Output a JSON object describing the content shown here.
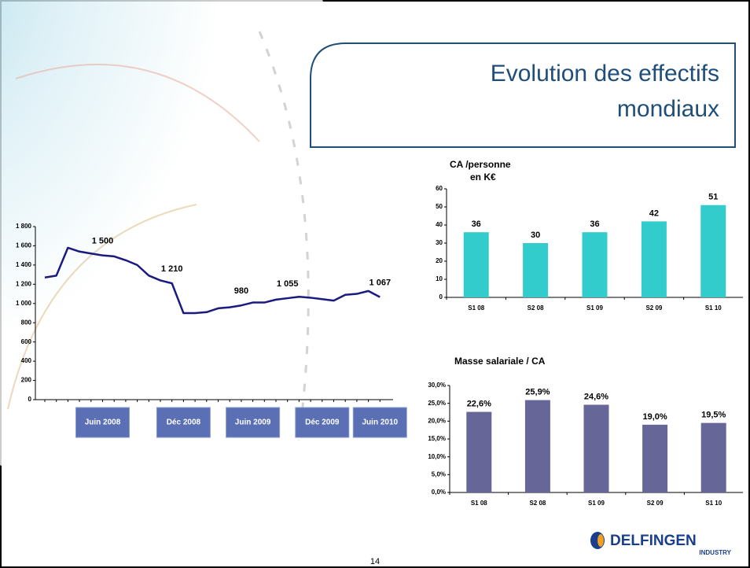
{
  "slide": {
    "title_lines": [
      "Evolution des effectifs",
      "mondiaux"
    ],
    "page_number": "14",
    "logo": "DELFINGEN",
    "logo_sub": "INDUSTRY"
  },
  "chart_data": [
    {
      "type": "line",
      "color": "#1a1a80",
      "categories": [
        null,
        null,
        null,
        null,
        null,
        "Juin 2008",
        null,
        null,
        null,
        null,
        null,
        null,
        "Déc 2008",
        null,
        null,
        null,
        null,
        null,
        "Juin 2009",
        null,
        null,
        null,
        null,
        null,
        "Déc 2009",
        null,
        null,
        null,
        null,
        "Juin 2010"
      ],
      "values": [
        1270,
        1290,
        1580,
        1540,
        1520,
        1500,
        1490,
        1450,
        1400,
        1290,
        1240,
        1210,
        900,
        900,
        910,
        950,
        960,
        980,
        1010,
        1010,
        1040,
        1055,
        1070,
        1060,
        1045,
        1030,
        1090,
        1100,
        1130,
        1067
      ],
      "value_labels": [
        null,
        null,
        null,
        null,
        null,
        "1 500",
        null,
        null,
        null,
        null,
        null,
        "1 210",
        null,
        null,
        null,
        null,
        null,
        "980",
        null,
        null,
        null,
        "1 055",
        null,
        null,
        null,
        null,
        null,
        null,
        null,
        "1 067"
      ],
      "ylim": [
        0,
        1800
      ],
      "yticks": [
        0,
        200,
        400,
        600,
        800,
        {
          "value": 1000,
          "label": "1 000"
        },
        {
          "value": 1200,
          "label": "1 200"
        },
        {
          "value": 1400,
          "label": "1 400"
        },
        {
          "value": 1600,
          "label": "1 600"
        },
        {
          "value": 1800,
          "label": "1 800"
        }
      ]
    },
    {
      "type": "bar",
      "title": "CA /personne",
      "subtitle": "en K€",
      "color": "#33cccc",
      "categories": [
        "S1 08",
        "S2 08",
        "S1 09",
        "S2 09",
        "S1 10"
      ],
      "values": [
        36,
        30,
        36,
        42,
        51
      ],
      "ylim": [
        0,
        60
      ],
      "yticks": [
        0,
        10,
        20,
        30,
        40,
        50,
        60
      ]
    },
    {
      "type": "bar",
      "title": "Masse salariale / CA",
      "color": "#666699",
      "categories": [
        "S1 08",
        "S2 08",
        "S1 09",
        "S2 09",
        "S1 10"
      ],
      "values": [
        22.6,
        25.9,
        24.6,
        19.0,
        19.5
      ],
      "value_labels": [
        "22,6%",
        "25,9%",
        "24,6%",
        "19,0%",
        "19,5%"
      ],
      "ylim": [
        0,
        30
      ],
      "yticks": [
        {
          "value": 0,
          "label": "0,0%"
        },
        {
          "value": 5,
          "label": "5,0%"
        },
        {
          "value": 10,
          "label": "10,0%"
        },
        {
          "value": 15,
          "label": "15,0%"
        },
        {
          "value": 20,
          "label": "20,0%"
        },
        {
          "value": 25,
          "label": "25,0%"
        },
        {
          "value": 30,
          "label": "30,0%"
        }
      ]
    }
  ]
}
